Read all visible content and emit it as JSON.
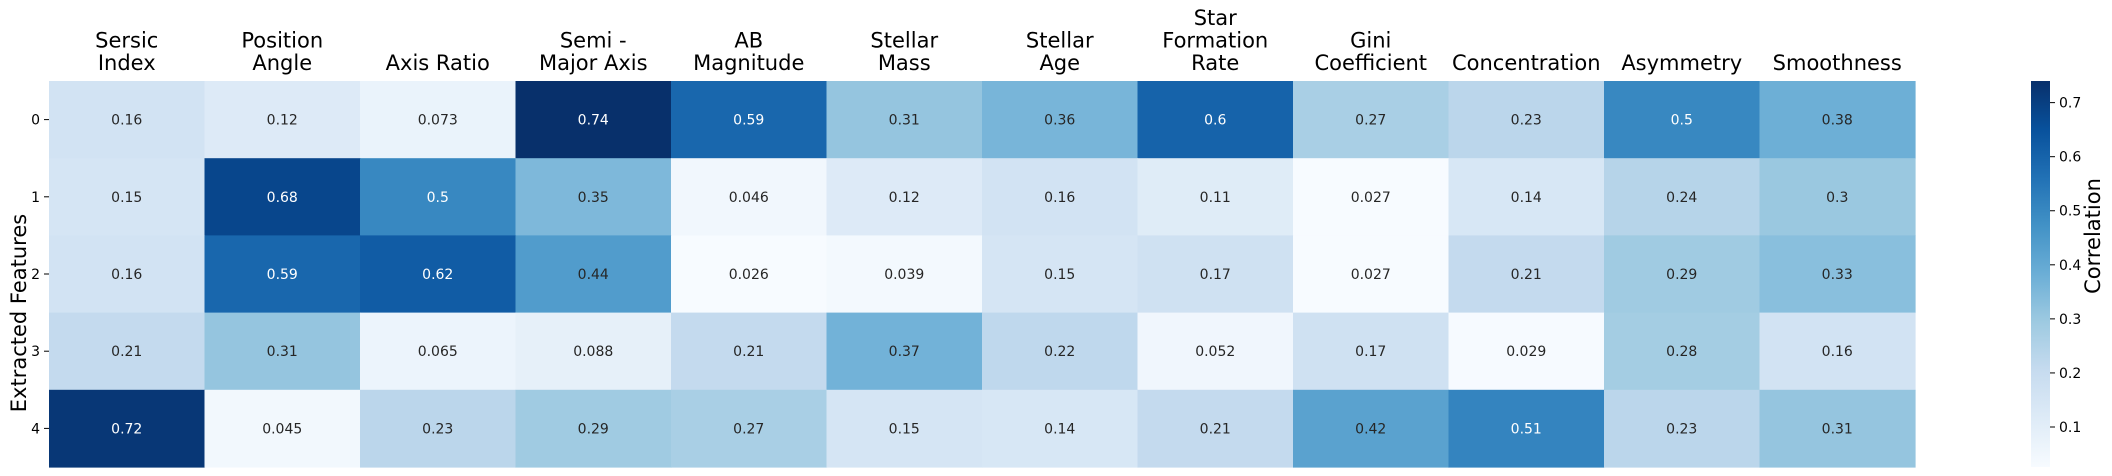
{
  "chart_data": {
    "type": "heatmap",
    "title": "",
    "columns": [
      [
        "Sersic",
        "Index"
      ],
      [
        "Position",
        "Angle"
      ],
      [
        "Axis Ratio"
      ],
      [
        "Semi -",
        "Major Axis"
      ],
      [
        "AB",
        "Magnitude"
      ],
      [
        "Stellar",
        "Mass"
      ],
      [
        "Stellar",
        "Age"
      ],
      [
        "Star",
        "Formation",
        "Rate"
      ],
      [
        "Gini",
        "Coefficient"
      ],
      [
        "Concentration"
      ],
      [
        "Asymmetry"
      ],
      [
        "Smoothness"
      ]
    ],
    "rows": [
      "0",
      "1",
      "2",
      "3",
      "4"
    ],
    "ylabel": "Extracted Features",
    "colorbar_label": "Correlation",
    "colorbar_ticks": [
      0.1,
      0.2,
      0.3,
      0.4,
      0.5,
      0.6,
      0.7
    ],
    "vmin": 0.026,
    "vmax": 0.74,
    "colormap": "Blues",
    "values": [
      [
        0.16,
        0.12,
        0.073,
        0.74,
        0.59,
        0.31,
        0.36,
        0.6,
        0.27,
        0.23,
        0.5,
        0.38
      ],
      [
        0.15,
        0.68,
        0.5,
        0.35,
        0.046,
        0.12,
        0.16,
        0.11,
        0.027,
        0.14,
        0.24,
        0.3
      ],
      [
        0.16,
        0.59,
        0.62,
        0.44,
        0.026,
        0.039,
        0.15,
        0.17,
        0.027,
        0.21,
        0.29,
        0.33
      ],
      [
        0.21,
        0.31,
        0.065,
        0.088,
        0.21,
        0.37,
        0.22,
        0.052,
        0.17,
        0.029,
        0.28,
        0.16
      ],
      [
        0.72,
        0.045,
        0.23,
        0.29,
        0.27,
        0.15,
        0.14,
        0.21,
        0.42,
        0.51,
        0.23,
        0.31
      ]
    ]
  }
}
